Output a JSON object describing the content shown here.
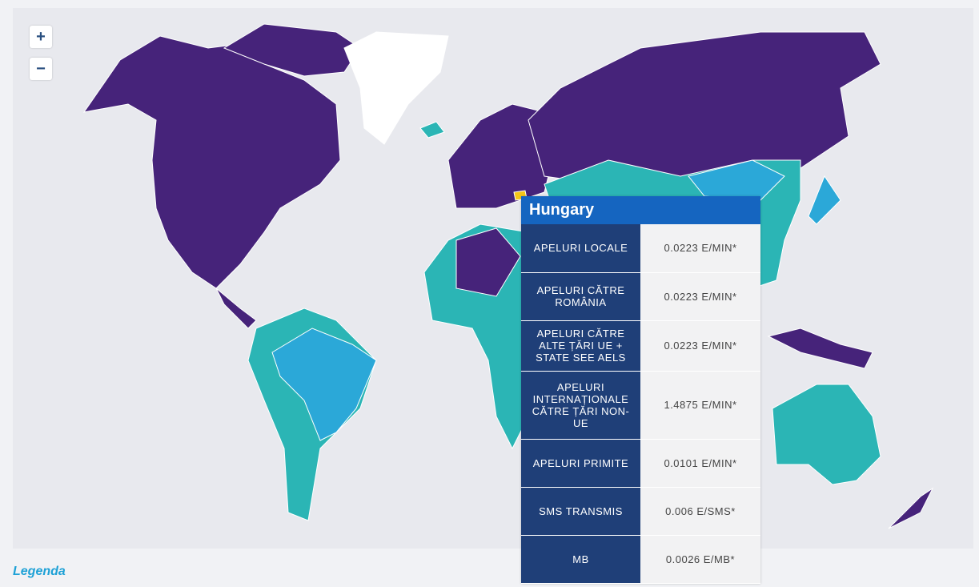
{
  "controls": {
    "zoom_in": "+",
    "zoom_out": "−"
  },
  "tooltip": {
    "title": "Hungary",
    "rows": [
      [
        "APELURI LOCALE",
        "0.0223 E/MIN*"
      ],
      [
        "APELURI CĂTRE ROMÂNIA",
        "0.0223 E/MIN*"
      ],
      [
        "APELURI CĂTRE ALTE ȚĂRI UE + STATE SEE AELS",
        "0.0223 E/MIN*"
      ],
      [
        "APELURI INTERNAȚIONALE CĂTRE ȚĂRI NON-UE",
        "1.4875 E/MIN*"
      ],
      [
        "APELURI PRIMITE",
        "0.0101 E/MIN*"
      ],
      [
        "SMS TRANSMIS",
        "0.006 E/SMS*"
      ],
      [
        "MB",
        "0.0026 E/MB*"
      ]
    ]
  },
  "legend": {
    "title": "Legenda"
  }
}
